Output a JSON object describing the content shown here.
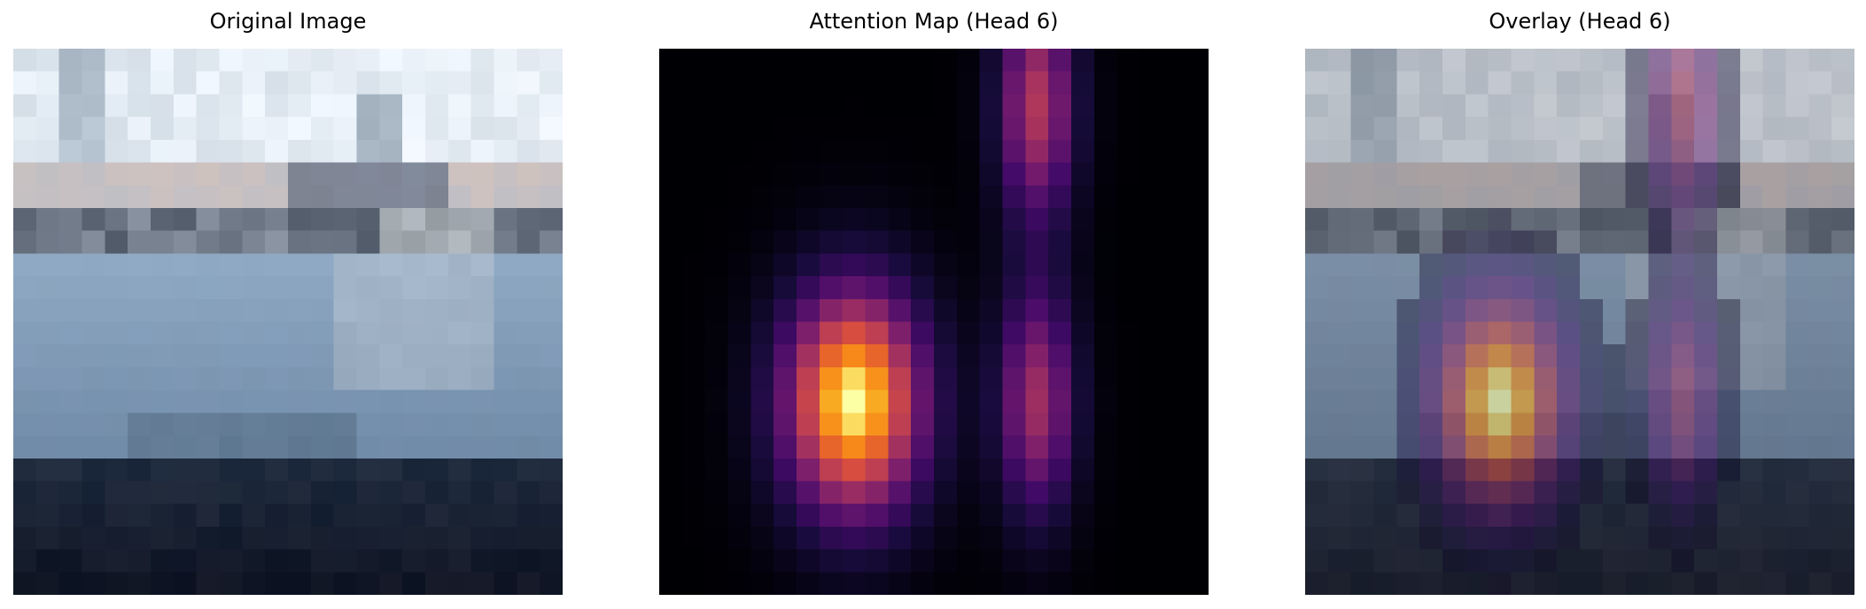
{
  "figure": {
    "panels": [
      {
        "title": "Original Image",
        "kind": "photo"
      },
      {
        "title": "Attention Map (Head 6)",
        "kind": "heatmap",
        "colormap": "inferno"
      },
      {
        "title": "Overlay (Head 6)",
        "kind": "overlay",
        "colormap": "inferno"
      }
    ],
    "grid": {
      "rows": 24,
      "cols": 24
    },
    "attention_peaks": [
      {
        "row": 15,
        "col": 8,
        "intensity": 1.0,
        "spread_rows": 3.6,
        "spread_cols": 2.2
      },
      {
        "row": 15,
        "col": 16,
        "intensity": 0.55,
        "spread_rows": 3.6,
        "spread_cols": 1.2
      },
      {
        "row": 2,
        "col": 16,
        "intensity": 0.6,
        "spread_rows": 3.6,
        "spread_cols": 1.2
      }
    ],
    "colors": {
      "sky": "#d9e4ee",
      "water": "#5f7a98",
      "hull": "#8fa9c4",
      "shadow": "#1e2a3d"
    }
  }
}
